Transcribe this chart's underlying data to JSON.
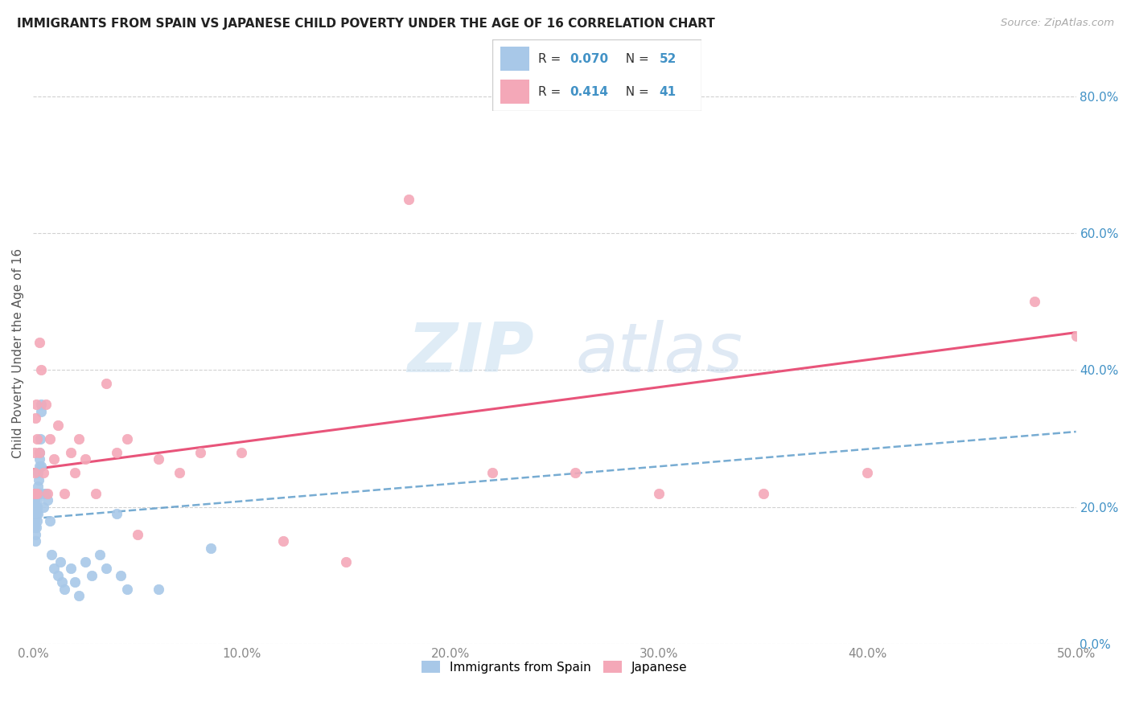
{
  "title": "IMMIGRANTS FROM SPAIN VS JAPANESE CHILD POVERTY UNDER THE AGE OF 16 CORRELATION CHART",
  "source": "Source: ZipAtlas.com",
  "ylabel": "Child Poverty Under the Age of 16",
  "xlim": [
    0,
    0.5
  ],
  "ylim": [
    0,
    0.85
  ],
  "xticks": [
    0.0,
    0.1,
    0.2,
    0.3,
    0.4,
    0.5
  ],
  "yticks": [
    0.0,
    0.2,
    0.4,
    0.6,
    0.8
  ],
  "xtick_labels": [
    "0.0%",
    "10.0%",
    "20.0%",
    "30.0%",
    "40.0%",
    "50.0%"
  ],
  "ytick_labels": [
    "0.0%",
    "20.0%",
    "40.0%",
    "60.0%",
    "80.0%"
  ],
  "blue_color": "#a8c8e8",
  "pink_color": "#f4a8b8",
  "blue_line_color": "#4a90c4",
  "pink_line_color": "#e8547a",
  "watermark_zip": "ZIP",
  "watermark_atlas": "atlas",
  "blue_line_x": [
    0.0,
    0.5
  ],
  "blue_line_y": [
    0.183,
    0.31
  ],
  "pink_line_x": [
    0.0,
    0.5
  ],
  "pink_line_y": [
    0.255,
    0.455
  ],
  "spain_x": [
    0.0003,
    0.0005,
    0.0006,
    0.0007,
    0.0008,
    0.0009,
    0.001,
    0.0012,
    0.0013,
    0.0014,
    0.0015,
    0.0016,
    0.0017,
    0.0018,
    0.002,
    0.002,
    0.002,
    0.0022,
    0.0023,
    0.0024,
    0.0025,
    0.003,
    0.003,
    0.003,
    0.0032,
    0.0035,
    0.004,
    0.004,
    0.004,
    0.005,
    0.005,
    0.006,
    0.007,
    0.008,
    0.009,
    0.01,
    0.012,
    0.013,
    0.014,
    0.015,
    0.018,
    0.02,
    0.022,
    0.025,
    0.028,
    0.032,
    0.035,
    0.04,
    0.042,
    0.045,
    0.06,
    0.085
  ],
  "spain_y": [
    0.2,
    0.19,
    0.17,
    0.22,
    0.21,
    0.18,
    0.16,
    0.2,
    0.15,
    0.17,
    0.22,
    0.19,
    0.2,
    0.21,
    0.18,
    0.22,
    0.2,
    0.25,
    0.19,
    0.23,
    0.24,
    0.22,
    0.26,
    0.28,
    0.27,
    0.3,
    0.34,
    0.35,
    0.26,
    0.22,
    0.2,
    0.22,
    0.21,
    0.18,
    0.13,
    0.11,
    0.1,
    0.12,
    0.09,
    0.08,
    0.11,
    0.09,
    0.07,
    0.12,
    0.1,
    0.13,
    0.11,
    0.19,
    0.1,
    0.08,
    0.08,
    0.14
  ],
  "japan_x": [
    0.0004,
    0.0006,
    0.0008,
    0.001,
    0.0012,
    0.0015,
    0.002,
    0.002,
    0.003,
    0.003,
    0.004,
    0.005,
    0.006,
    0.007,
    0.008,
    0.01,
    0.012,
    0.015,
    0.018,
    0.02,
    0.022,
    0.025,
    0.03,
    0.035,
    0.04,
    0.045,
    0.05,
    0.06,
    0.07,
    0.08,
    0.1,
    0.12,
    0.15,
    0.18,
    0.22,
    0.26,
    0.3,
    0.35,
    0.4,
    0.48,
    0.5
  ],
  "japan_y": [
    0.22,
    0.25,
    0.28,
    0.22,
    0.33,
    0.35,
    0.3,
    0.22,
    0.44,
    0.28,
    0.4,
    0.25,
    0.35,
    0.22,
    0.3,
    0.27,
    0.32,
    0.22,
    0.28,
    0.25,
    0.3,
    0.27,
    0.22,
    0.38,
    0.28,
    0.3,
    0.16,
    0.27,
    0.25,
    0.28,
    0.28,
    0.15,
    0.12,
    0.65,
    0.25,
    0.25,
    0.22,
    0.22,
    0.25,
    0.5,
    0.45
  ]
}
